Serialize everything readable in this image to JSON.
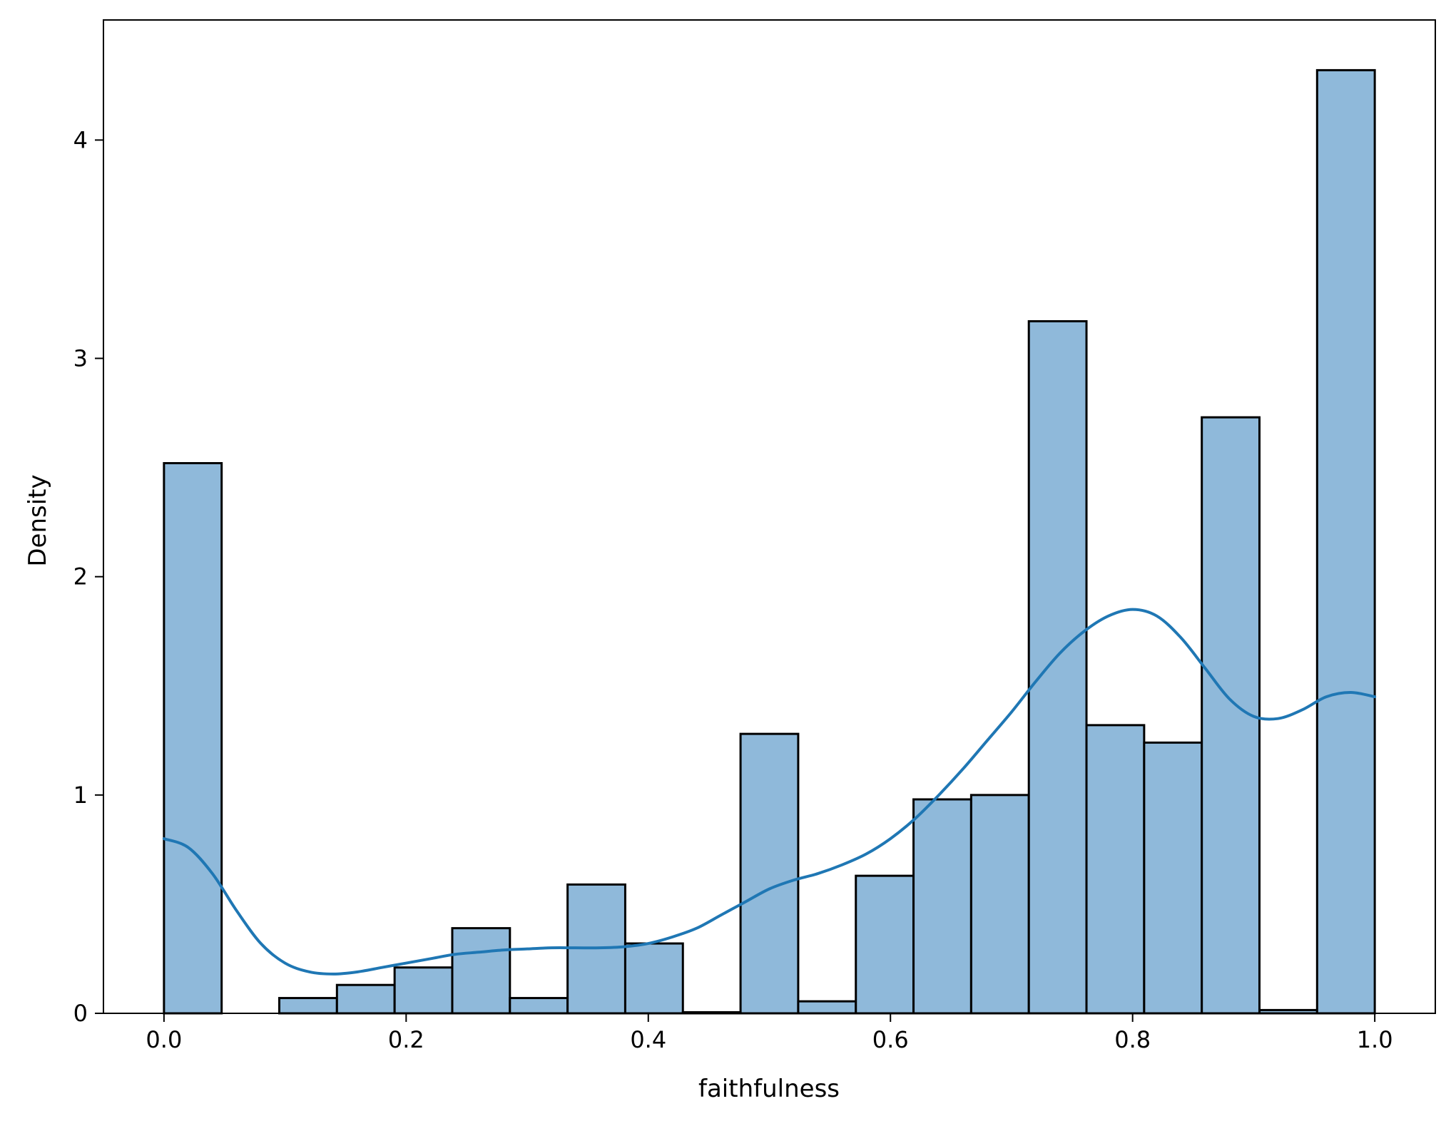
{
  "chart_data": {
    "type": "bar",
    "subtype": "histogram-with-kde",
    "title": "",
    "xlabel": "faithfulness",
    "ylabel": "Density",
    "xlim": [
      -0.05,
      1.05
    ],
    "ylim": [
      0,
      4.55
    ],
    "xticks": [
      0.0,
      0.2,
      0.4,
      0.6,
      0.8,
      1.0
    ],
    "xtick_labels": [
      "0.0",
      "0.2",
      "0.4",
      "0.6",
      "0.8",
      "1.0"
    ],
    "yticks": [
      0,
      1,
      2,
      3,
      4
    ],
    "ytick_labels": [
      "0",
      "1",
      "2",
      "3",
      "4"
    ],
    "grid": false,
    "legend": "none",
    "bar_fill_color": "#8fb9da",
    "bar_edge_color": "#000000",
    "kde_color": "#1f77b4",
    "bins": {
      "edges": [
        0.0,
        0.047619,
        0.095238,
        0.142857,
        0.190476,
        0.238095,
        0.285714,
        0.333333,
        0.380952,
        0.428571,
        0.47619,
        0.52381,
        0.571429,
        0.619048,
        0.666667,
        0.714286,
        0.761905,
        0.809524,
        0.857143,
        0.904762,
        0.952381,
        1.0
      ],
      "values": [
        2.52,
        0.0,
        0.07,
        0.13,
        0.21,
        0.39,
        0.07,
        0.59,
        0.32,
        0.005,
        1.28,
        0.055,
        0.63,
        0.98,
        1.0,
        3.17,
        1.32,
        1.24,
        2.73,
        0.015,
        4.32
      ]
    },
    "kde": {
      "x": [
        0.0,
        0.02,
        0.04,
        0.06,
        0.08,
        0.1,
        0.12,
        0.14,
        0.16,
        0.18,
        0.2,
        0.22,
        0.24,
        0.26,
        0.28,
        0.3,
        0.32,
        0.34,
        0.36,
        0.38,
        0.4,
        0.42,
        0.44,
        0.46,
        0.48,
        0.5,
        0.52,
        0.54,
        0.56,
        0.58,
        0.6,
        0.62,
        0.64,
        0.66,
        0.68,
        0.7,
        0.72,
        0.74,
        0.76,
        0.78,
        0.8,
        0.82,
        0.84,
        0.86,
        0.88,
        0.9,
        0.92,
        0.94,
        0.96,
        0.98,
        1.0
      ],
      "y": [
        0.8,
        0.76,
        0.64,
        0.47,
        0.32,
        0.23,
        0.19,
        0.18,
        0.19,
        0.21,
        0.23,
        0.25,
        0.27,
        0.28,
        0.29,
        0.295,
        0.3,
        0.3,
        0.3,
        0.305,
        0.32,
        0.35,
        0.39,
        0.45,
        0.51,
        0.57,
        0.61,
        0.64,
        0.68,
        0.73,
        0.8,
        0.89,
        1.0,
        1.12,
        1.25,
        1.38,
        1.52,
        1.65,
        1.75,
        1.82,
        1.85,
        1.82,
        1.72,
        1.58,
        1.44,
        1.36,
        1.35,
        1.39,
        1.45,
        1.47,
        1.45
      ]
    }
  }
}
